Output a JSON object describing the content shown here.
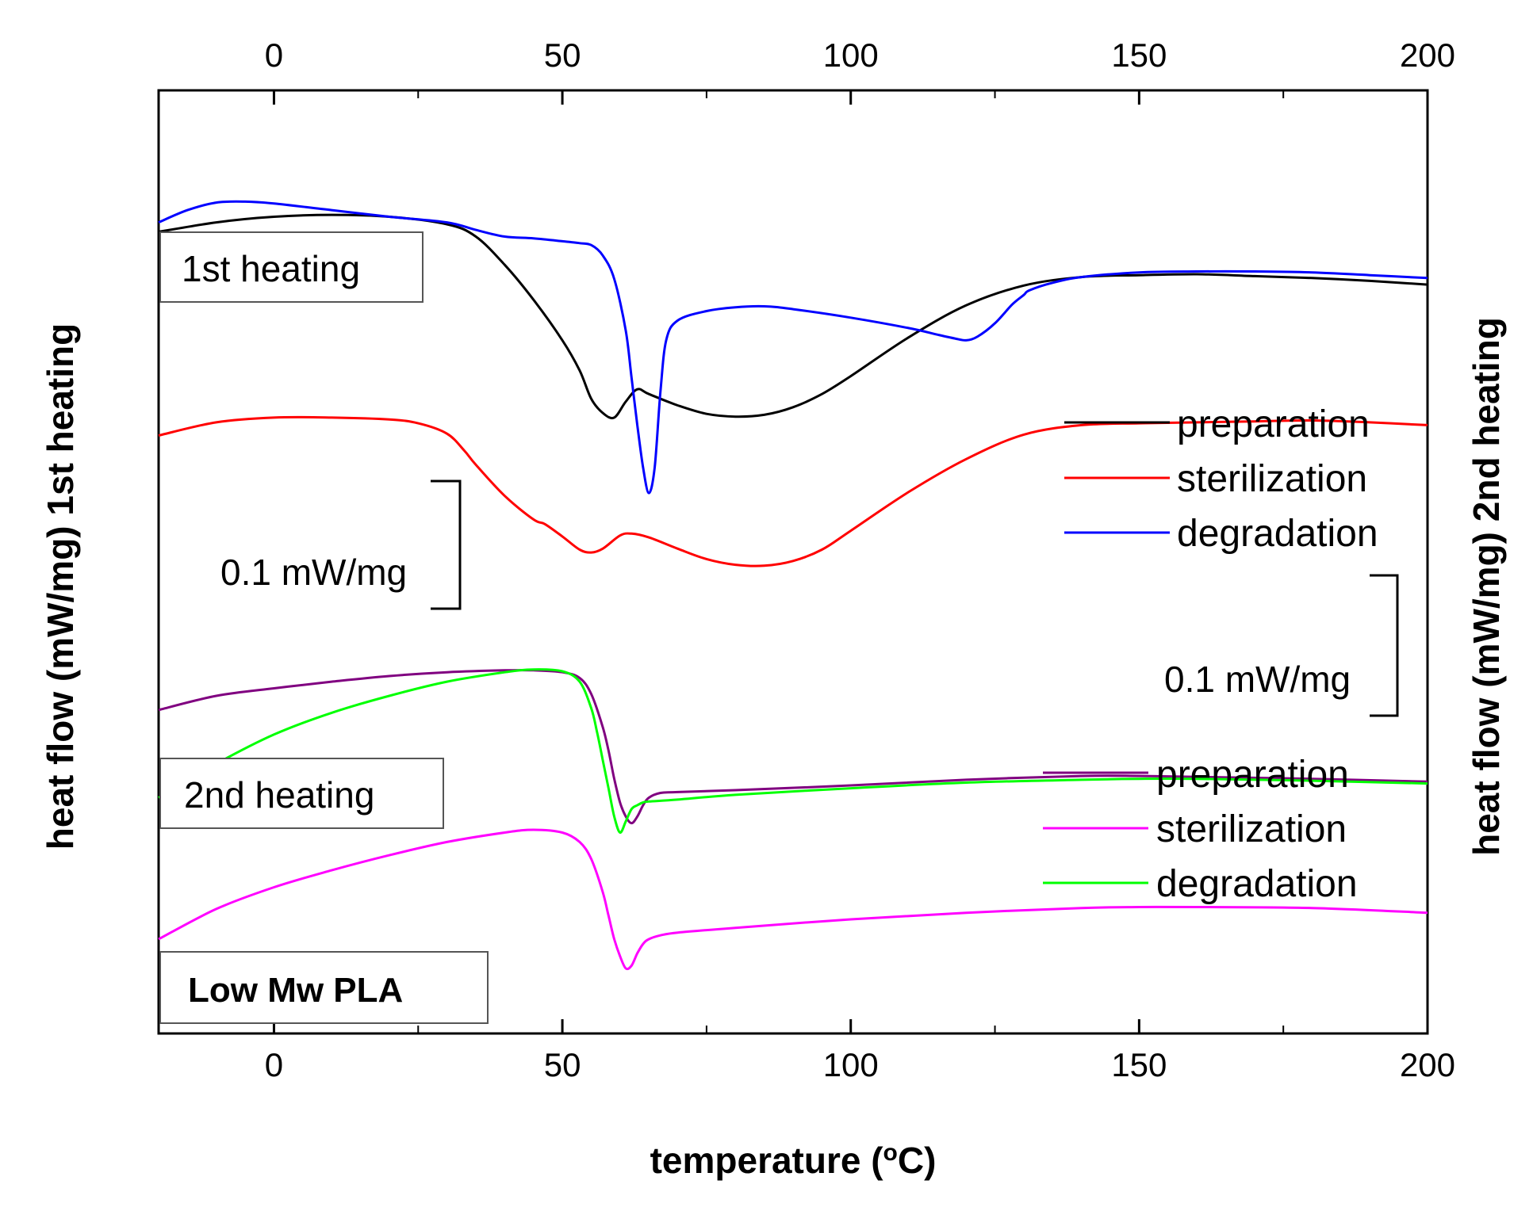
{
  "chart_data": {
    "type": "line",
    "title": "",
    "xlabel": "temperature (°C)",
    "xlabel_main": "temperature (",
    "xlabel_sup": "o",
    "xlabel_end": "C)",
    "ylabel_left": "heat flow (mW/mg) 1st heating",
    "ylabel_right": "heat flow (mW/mg) 2nd heating",
    "xlim": [
      -20,
      200
    ],
    "ylim": [
      0,
      100
    ],
    "x_ticks": [
      0,
      50,
      100,
      150,
      200
    ],
    "x_tick_labels": [
      "0",
      "50",
      "100",
      "150",
      "200"
    ],
    "x_minor_ticks": [
      -25,
      25,
      75,
      125,
      175
    ],
    "grid": false,
    "panel_labels": {
      "first": "1st heating",
      "second": "2nd heating",
      "sample": "Low Mw PLA"
    },
    "scale_bars": [
      {
        "label": "0.1 mW/mg",
        "span": 0.1,
        "side": "left"
      },
      {
        "label": "0.1 mW/mg",
        "span": 0.1,
        "side": "right"
      }
    ],
    "legends": [
      {
        "group": "1st heating",
        "placement": "upper-right",
        "entries": [
          "preparation",
          "sterilization",
          "degradation"
        ]
      },
      {
        "group": "2nd heating",
        "placement": "middle-right",
        "entries": [
          "preparation",
          "sterilization",
          "degradation"
        ]
      }
    ],
    "series": [
      {
        "name": "preparation",
        "group": "1st heating",
        "color": "#000000",
        "x": [
          -20,
          -10,
          0,
          10,
          20,
          30,
          35,
          40,
          45,
          50,
          53,
          55,
          57,
          59,
          61,
          63,
          65,
          70,
          75,
          80,
          85,
          90,
          95,
          100,
          110,
          120,
          130,
          140,
          150,
          160,
          170,
          180,
          190,
          200
        ],
        "y": [
          85.0,
          86.0,
          86.6,
          86.8,
          86.6,
          85.8,
          84.5,
          81.5,
          77.8,
          73.5,
          70.3,
          67.3,
          65.8,
          65.3,
          67.0,
          68.3,
          67.8,
          66.6,
          65.7,
          65.4,
          65.6,
          66.4,
          67.8,
          69.7,
          73.8,
          77.2,
          79.3,
          80.2,
          80.4,
          80.5,
          80.3,
          80.1,
          79.8,
          79.4
        ]
      },
      {
        "name": "sterilization",
        "group": "1st heating",
        "color": "#ff0000",
        "x": [
          -20,
          -10,
          0,
          10,
          20,
          25,
          30,
          33,
          35,
          40,
          45,
          47,
          50,
          53,
          55,
          57,
          60,
          62,
          65,
          70,
          75,
          80,
          85,
          90,
          95,
          100,
          110,
          120,
          130,
          140,
          150,
          160,
          170,
          180,
          190,
          200
        ],
        "y": [
          63.4,
          64.8,
          65.3,
          65.3,
          65.1,
          64.7,
          63.6,
          61.8,
          60.3,
          57.0,
          54.5,
          54.0,
          52.7,
          51.3,
          51.0,
          51.4,
          52.8,
          53.0,
          52.6,
          51.4,
          50.3,
          49.7,
          49.6,
          50.1,
          51.3,
          53.3,
          57.4,
          60.9,
          63.5,
          64.5,
          64.7,
          64.8,
          64.9,
          65.0,
          64.8,
          64.5
        ]
      },
      {
        "name": "degradation",
        "group": "1st heating",
        "color": "#0000ff",
        "x": [
          -20,
          -15,
          -10,
          -5,
          0,
          10,
          20,
          30,
          35,
          40,
          45,
          50,
          53,
          55,
          57,
          59,
          61,
          62,
          63,
          64,
          65,
          66,
          67,
          68,
          70,
          75,
          80,
          85,
          90,
          100,
          110,
          115,
          118,
          120,
          122,
          125,
          128,
          130,
          131,
          135,
          140,
          150,
          160,
          170,
          180,
          190,
          200
        ],
        "y": [
          86.0,
          87.3,
          88.1,
          88.2,
          88.0,
          87.3,
          86.6,
          86.0,
          85.2,
          84.5,
          84.3,
          84.0,
          83.8,
          83.6,
          82.5,
          80.0,
          74.5,
          69.5,
          64.5,
          60.0,
          57.3,
          60.0,
          68.0,
          73.5,
          75.6,
          76.6,
          77.0,
          77.1,
          76.8,
          75.9,
          74.8,
          74.1,
          73.7,
          73.5,
          73.9,
          75.3,
          77.3,
          78.3,
          78.8,
          79.6,
          80.2,
          80.7,
          80.8,
          80.8,
          80.7,
          80.4,
          80.1
        ]
      },
      {
        "name": "preparation",
        "group": "2nd heating",
        "color": "#800080",
        "x": [
          -20,
          -10,
          0,
          10,
          20,
          30,
          40,
          45,
          50,
          53,
          55,
          57,
          58,
          59,
          60,
          61,
          62,
          63,
          64,
          65,
          67,
          70,
          80,
          100,
          120,
          140,
          150,
          160,
          180,
          200
        ],
        "y": [
          34.3,
          35.8,
          36.6,
          37.3,
          37.9,
          38.3,
          38.5,
          38.5,
          38.3,
          37.7,
          36.0,
          32.5,
          30.0,
          27.0,
          24.5,
          23.0,
          22.3,
          23.0,
          24.2,
          25.0,
          25.5,
          25.6,
          25.8,
          26.3,
          26.9,
          27.3,
          27.3,
          27.2,
          27.0,
          26.7
        ]
      },
      {
        "name": "sterilization",
        "group": "2nd heating",
        "color": "#ff00ff",
        "x": [
          -20,
          -10,
          0,
          10,
          20,
          30,
          40,
          45,
          50,
          53,
          55,
          57,
          58,
          59,
          60,
          61,
          62,
          63,
          64,
          65,
          67,
          70,
          80,
          100,
          120,
          140,
          150,
          160,
          180,
          200
        ],
        "y": [
          10.0,
          13.2,
          15.5,
          17.3,
          18.9,
          20.3,
          21.3,
          21.6,
          21.3,
          20.3,
          18.5,
          15.0,
          12.5,
          10.0,
          8.2,
          6.9,
          7.2,
          8.5,
          9.5,
          10.0,
          10.4,
          10.7,
          11.2,
          12.1,
          12.8,
          13.3,
          13.4,
          13.4,
          13.3,
          12.8
        ]
      },
      {
        "name": "degradation",
        "group": "2nd heating",
        "color": "#00ff00",
        "x": [
          -20,
          -10,
          0,
          10,
          20,
          30,
          40,
          45,
          50,
          53,
          55,
          56,
          57,
          58,
          59,
          60,
          61,
          62,
          63,
          64,
          65,
          70,
          80,
          100,
          120,
          140,
          150,
          160,
          180,
          200
        ],
        "y": [
          25.0,
          28.6,
          31.7,
          34.0,
          35.8,
          37.3,
          38.3,
          38.6,
          38.4,
          37.3,
          34.5,
          32.0,
          29.0,
          26.0,
          23.0,
          21.3,
          22.5,
          23.8,
          24.2,
          24.5,
          24.6,
          24.8,
          25.3,
          26.0,
          26.6,
          26.9,
          27.0,
          27.0,
          26.8,
          26.5
        ]
      }
    ]
  }
}
